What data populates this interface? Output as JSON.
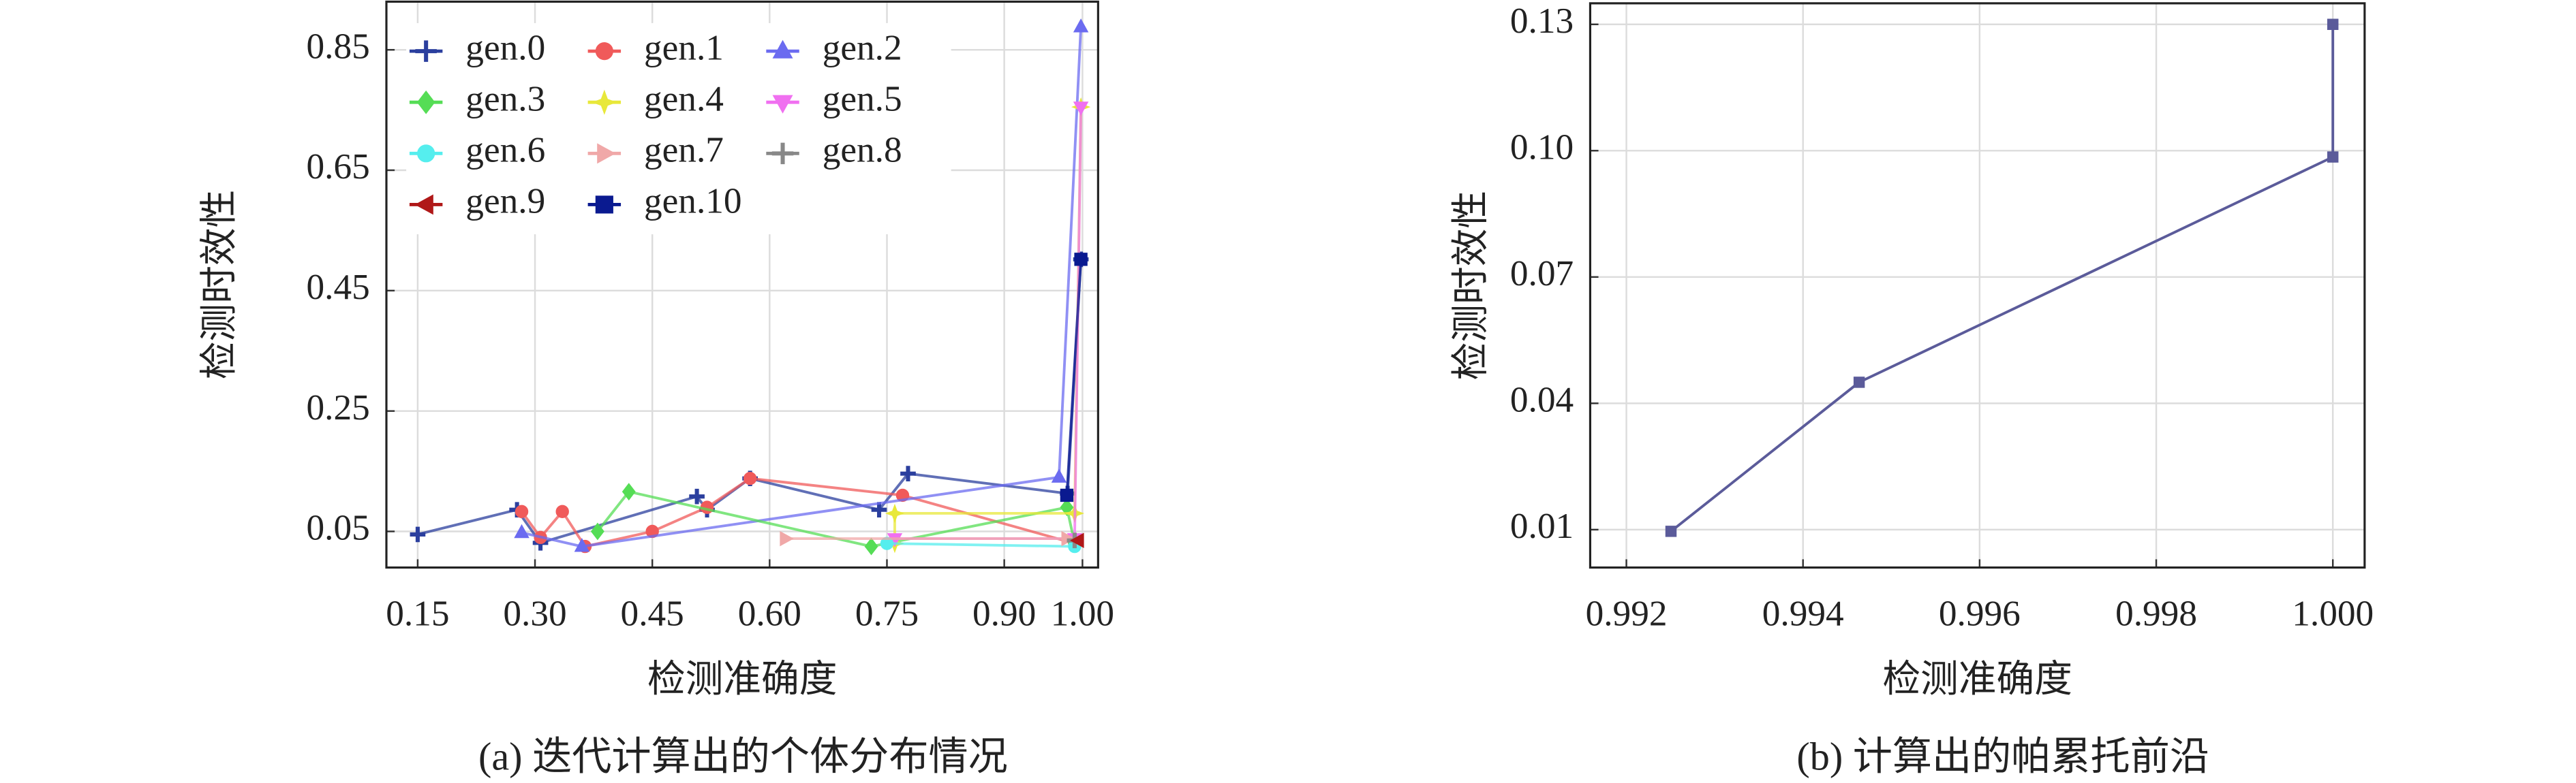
{
  "chart_data": [
    {
      "type": "line",
      "caption": "(a) 迭代计算出的个体分布情况",
      "x_label": "检测准确度",
      "y_label": "检测时效性",
      "xlim": [
        0.11,
        1.02
      ],
      "ylim": [
        -0.01,
        0.93
      ],
      "xticks": [
        0.15,
        {
          "value": 0.3,
          "label": "0.30"
        },
        0.45,
        {
          "value": 0.6,
          "label": "0.60"
        },
        0.75,
        {
          "value": 0.9,
          "label": "0.90"
        },
        {
          "value": 1.0,
          "label": "1.00"
        }
      ],
      "yticks": [
        0.05,
        0.25,
        0.45,
        0.65,
        0.85
      ],
      "grid": true,
      "legend": "upper left",
      "series": [
        {
          "name": "gen.0",
          "color": "#2b3f9e",
          "marker": "plus",
          "x": [
            0.15,
            0.277,
            0.307,
            0.507,
            0.52,
            0.575,
            0.74,
            0.777,
            0.981,
            0.998
          ],
          "values": [
            0.045,
            0.086,
            0.031,
            0.108,
            0.086,
            0.138,
            0.086,
            0.146,
            0.113,
            0.502
          ]
        },
        {
          "name": "gen.1",
          "color": "#f05a5a",
          "marker": "circle",
          "x": [
            0.283,
            0.307,
            0.335,
            0.364,
            0.45,
            0.52,
            0.575,
            0.77,
            0.99
          ],
          "values": [
            0.083,
            0.04,
            0.083,
            0.025,
            0.05,
            0.09,
            0.138,
            0.11,
            0.03
          ]
        },
        {
          "name": "gen.2",
          "color": "#6b6bf0",
          "marker": "triangle",
          "x": [
            0.283,
            0.36,
            0.97,
            0.998
          ],
          "values": [
            0.048,
            0.025,
            0.14,
            0.888
          ]
        },
        {
          "name": "gen.3",
          "color": "#55dd55",
          "marker": "diamond",
          "x": [
            0.38,
            0.42,
            0.73,
            0.98,
            0.99
          ],
          "values": [
            0.05,
            0.116,
            0.025,
            0.09,
            0.03
          ]
        },
        {
          "name": "gen.4",
          "color": "#e8e83a",
          "marker": "star",
          "x": [
            0.76,
            0.76,
            0.99,
            0.998
          ],
          "values": [
            0.03,
            0.08,
            0.08,
            0.755
          ]
        },
        {
          "name": "gen.5",
          "color": "#f070f0",
          "marker": "triangle-down",
          "x": [
            0.76,
            0.99,
            0.998
          ],
          "values": [
            0.038,
            0.038,
            0.755
          ]
        },
        {
          "name": "gen.6",
          "color": "#55eeee",
          "marker": "circle",
          "x": [
            0.75,
            0.99
          ],
          "values": [
            0.03,
            0.025
          ]
        },
        {
          "name": "gen.7",
          "color": "#f0a8a8",
          "marker": "triangle-right",
          "x": [
            0.62,
            0.98
          ],
          "values": [
            0.038,
            0.038
          ]
        },
        {
          "name": "gen.8",
          "color": "#888888",
          "marker": "plus",
          "x": [
            0.99
          ],
          "values": [
            0.035
          ]
        },
        {
          "name": "gen.9",
          "color": "#b01818",
          "marker": "triangle-left",
          "x": [
            0.995
          ],
          "values": [
            0.035
          ]
        },
        {
          "name": "gen.10",
          "color": "#0a1a90",
          "marker": "square",
          "x": [
            0.98,
            0.998
          ],
          "values": [
            0.11,
            0.502
          ]
        }
      ]
    },
    {
      "type": "line",
      "caption": "(b) 计算出的帕累托前沿",
      "x_label": "检测准确度",
      "y_label": "检测时效性",
      "xlim": [
        0.99159,
        1.00036
      ],
      "ylim": [
        0.001,
        0.135
      ],
      "xticks": [
        0.992,
        0.994,
        0.996,
        0.998,
        {
          "value": 1.0,
          "label": "1.000"
        }
      ],
      "yticks": [
        0.01,
        0.04,
        0.07,
        {
          "value": 0.1,
          "label": "0.10"
        },
        0.13
      ],
      "grid": true,
      "series": [
        {
          "color": "#5b5b9a",
          "marker": "square",
          "x": [
            0.992505,
            0.994636,
            1.0,
            1.0
          ],
          "values": [
            0.0096,
            0.045,
            0.0985,
            0.13
          ]
        }
      ]
    }
  ]
}
